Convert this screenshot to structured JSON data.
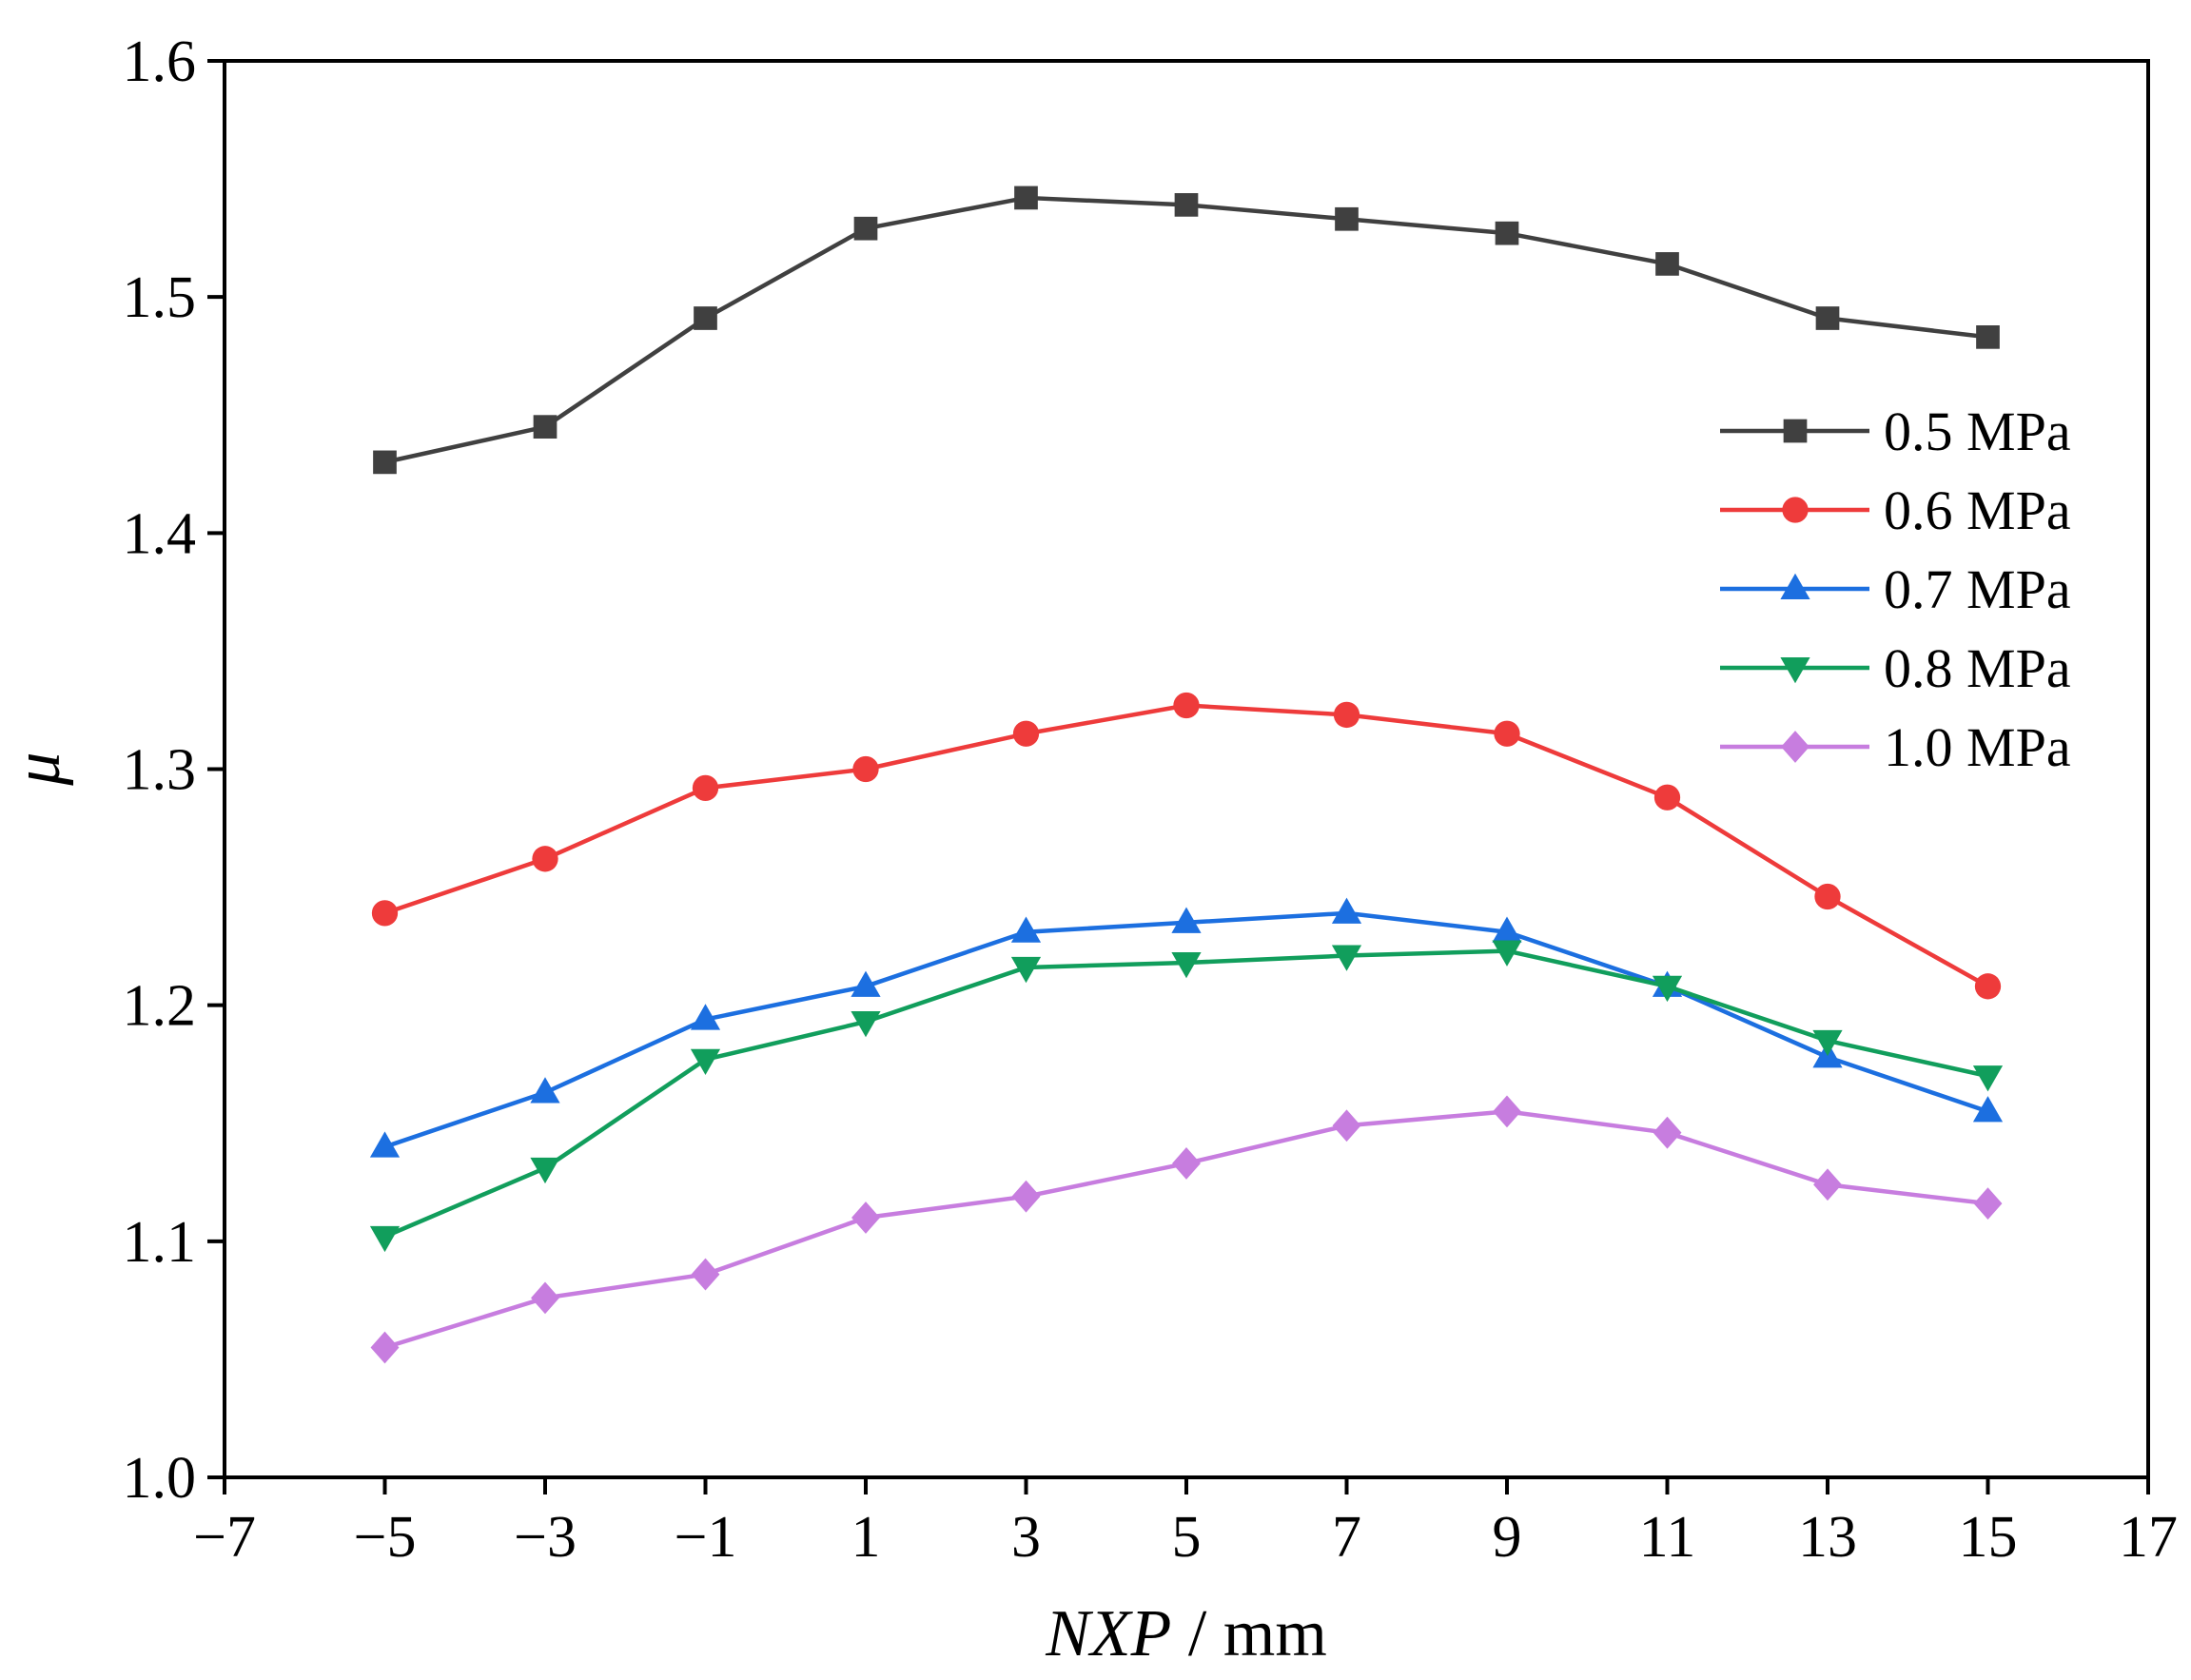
{
  "chart_data": {
    "type": "line",
    "title": "",
    "xlabel": {
      "italic": "NXP",
      "rest": " / mm"
    },
    "ylabel": "μ",
    "xlim": [
      -7,
      17
    ],
    "ylim": [
      1.0,
      1.6
    ],
    "x_ticks": [
      -7,
      -5,
      -3,
      -1,
      1,
      3,
      5,
      7,
      9,
      11,
      13,
      15,
      17
    ],
    "x_tick_labels": [
      "−7",
      "−5",
      "−3",
      "−1",
      "1",
      "3",
      "5",
      "7",
      "9",
      "11",
      "13",
      "15",
      "17"
    ],
    "y_ticks": [
      1.0,
      1.1,
      1.2,
      1.3,
      1.4,
      1.5,
      1.6
    ],
    "y_tick_labels": [
      "1.0",
      "1.1",
      "1.2",
      "1.3",
      "1.4",
      "1.5",
      "1.6"
    ],
    "grid": false,
    "legend_position": "right",
    "x": [
      -5,
      -3,
      -1,
      1,
      3,
      5,
      7,
      9,
      11,
      13,
      15
    ],
    "series": [
      {
        "name": "0.5 MPa",
        "color": "#404040",
        "marker": "square",
        "values": [
          1.43,
          1.445,
          1.491,
          1.529,
          1.542,
          1.539,
          1.533,
          1.527,
          1.514,
          1.491,
          1.483
        ]
      },
      {
        "name": "0.6 MPa",
        "color": "#ee3b3b",
        "marker": "circle",
        "values": [
          1.239,
          1.262,
          1.292,
          1.3,
          1.315,
          1.327,
          1.323,
          1.315,
          1.288,
          1.246,
          1.208
        ]
      },
      {
        "name": "0.7 MPa",
        "color": "#1c6fe0",
        "marker": "triangle-up",
        "values": [
          1.14,
          1.163,
          1.194,
          1.208,
          1.231,
          1.235,
          1.239,
          1.231,
          1.208,
          1.178,
          1.155
        ]
      },
      {
        "name": "0.8 MPa",
        "color": "#119e5c",
        "marker": "triangle-down",
        "values": [
          1.102,
          1.131,
          1.177,
          1.193,
          1.216,
          1.218,
          1.221,
          1.223,
          1.208,
          1.185,
          1.17
        ]
      },
      {
        "name": "1.0 MPa",
        "color": "#c77ddf",
        "marker": "diamond",
        "values": [
          1.055,
          1.076,
          1.086,
          1.11,
          1.119,
          1.133,
          1.149,
          1.155,
          1.146,
          1.124,
          1.116
        ]
      }
    ]
  }
}
